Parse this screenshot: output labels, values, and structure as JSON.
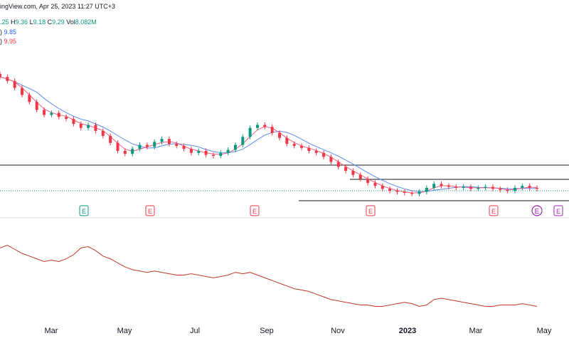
{
  "header": {
    "source_line": "ingView.com, Apr 25, 2023 11:27 UTC+3",
    "ohlc": {
      "o": ".25",
      "h_label": "H",
      "h": "9.36",
      "l_label": "L",
      "l": "9.18",
      "c_label": "C",
      "c": "9.29",
      "vol_label": "Vol",
      "vol": "8.082M"
    },
    "ma1": {
      "label": ")",
      "value": "9.85"
    },
    "ma2": {
      "label": ")",
      "value": "9.95"
    }
  },
  "colors": {
    "up": "#089981",
    "down": "#f23645",
    "ma_blue": "#5b8def",
    "ma_pink": "#f06080",
    "lower_line": "#c0392b",
    "earnings_up": "#089981",
    "earnings_down": "#f23645",
    "dividend": "#9c27b0"
  },
  "chart_data": [
    {
      "type": "candlestick",
      "x_tick_labels": [
        "Mar",
        "May",
        "Jul",
        "Sep",
        "Nov",
        "2023",
        "Mar",
        "May"
      ],
      "x_tick_dates": [
        "2022-03",
        "2022-05",
        "2022-07",
        "2022-09",
        "2022-11",
        "2023-01",
        "2023-03",
        "2023-05"
      ],
      "ylim": [
        8.4,
        23.0
      ],
      "close": [
        21.0,
        20.6,
        19.9,
        19.2,
        18.5,
        17.7,
        17.2,
        17.4,
        17.0,
        16.8,
        16.3,
        15.9,
        16.2,
        15.6,
        15.1,
        14.4,
        13.6,
        13.3,
        13.8,
        14.2,
        14.0,
        14.5,
        14.8,
        14.3,
        14.1,
        13.8,
        13.4,
        13.6,
        13.2,
        13.1,
        13.4,
        13.7,
        14.2,
        15.0,
        15.9,
        16.2,
        16.0,
        15.4,
        14.9,
        14.3,
        14.1,
        13.9,
        13.6,
        13.4,
        13.0,
        12.5,
        12.0,
        11.6,
        11.2,
        10.8,
        10.4,
        10.1,
        9.8,
        9.6,
        9.5,
        9.4,
        9.3,
        9.5,
        9.9,
        10.3,
        10.1,
        10.0,
        9.9,
        10.0,
        9.8,
        9.9,
        10.0,
        9.8,
        9.7,
        9.6,
        9.9,
        10.1,
        9.9,
        9.8
      ],
      "earnings_markers": [
        {
          "label": "E",
          "date": "2022-03",
          "kind": "up"
        },
        {
          "label": "E",
          "date": "2022-05",
          "kind": "down"
        },
        {
          "label": "E",
          "date": "2022-08",
          "kind": "down"
        },
        {
          "label": "E",
          "date": "2022-11",
          "kind": "down"
        },
        {
          "label": "E",
          "date": "2023-02",
          "kind": "down"
        },
        {
          "label": "E",
          "date": "2023-04",
          "kind": "dividend"
        }
      ],
      "current_price": "9.29"
    },
    {
      "type": "line",
      "series": [
        {
          "values": [
            0.78,
            0.8,
            0.77,
            0.74,
            0.72,
            0.7,
            0.68,
            0.69,
            0.68,
            0.7,
            0.73,
            0.78,
            0.79,
            0.76,
            0.72,
            0.7,
            0.67,
            0.64,
            0.62,
            0.61,
            0.6,
            0.61,
            0.6,
            0.59,
            0.58,
            0.58,
            0.59,
            0.58,
            0.57,
            0.56,
            0.57,
            0.58,
            0.6,
            0.59,
            0.6,
            0.58,
            0.56,
            0.54,
            0.52,
            0.5,
            0.48,
            0.47,
            0.46,
            0.44,
            0.42,
            0.4,
            0.39,
            0.38,
            0.37,
            0.36,
            0.36,
            0.35,
            0.35,
            0.36,
            0.37,
            0.38,
            0.37,
            0.35,
            0.36,
            0.4,
            0.41,
            0.4,
            0.39,
            0.38,
            0.37,
            0.36,
            0.35,
            0.35,
            0.36,
            0.36,
            0.36,
            0.37,
            0.36,
            0.35
          ]
        }
      ]
    }
  ]
}
